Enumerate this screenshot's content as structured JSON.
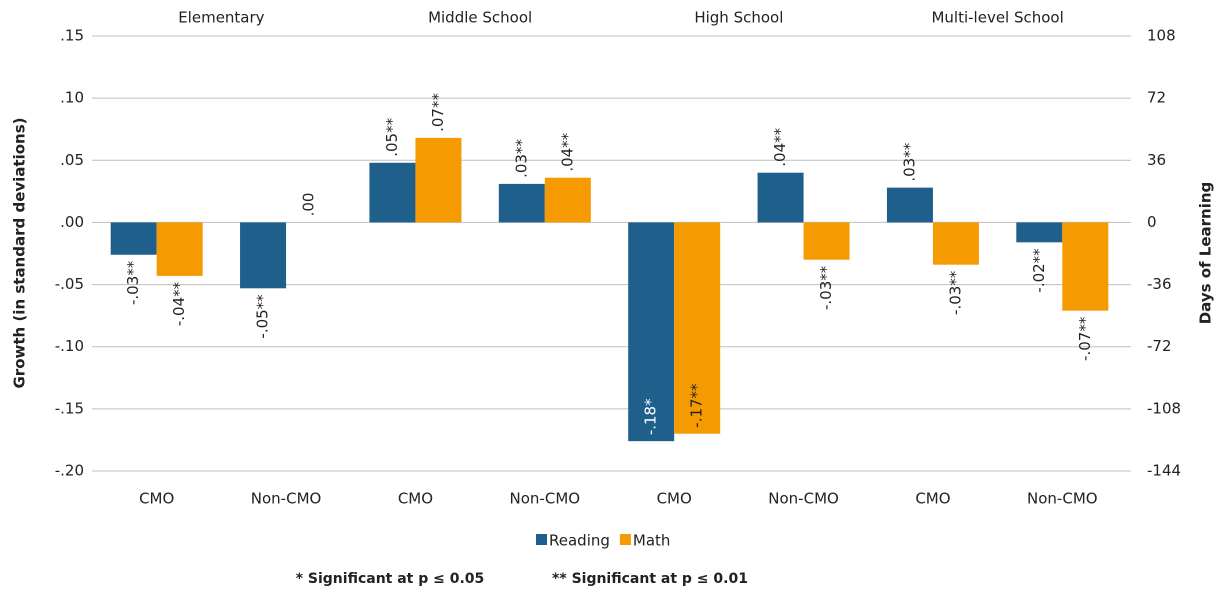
{
  "chart_data": {
    "type": "bar",
    "group_labels": [
      "Elementary",
      "Middle School",
      "High School",
      "Multi-level School"
    ],
    "categories": [
      "CMO",
      "Non-CMO",
      "CMO",
      "Non-CMO",
      "CMO",
      "Non-CMO",
      "CMO",
      "Non-CMO"
    ],
    "series": [
      {
        "name": "Reading",
        "color": "#1f5f8b",
        "values": [
          -0.026,
          -0.053,
          0.048,
          0.031,
          -0.176,
          0.04,
          0.028,
          -0.016
        ],
        "value_labels": [
          "-.03**",
          "-.05**",
          ".05**",
          ".03**",
          "-.18*",
          ".04**",
          ".03**",
          "-.02**"
        ]
      },
      {
        "name": "Math",
        "color": "#f59a00",
        "values": [
          -0.043,
          0,
          0.068,
          0.036,
          -0.17,
          -0.03,
          -0.034,
          -0.071
        ],
        "value_labels": [
          "-.04**",
          ".00",
          ".07**",
          ".04**",
          "-.17**",
          "-.03**",
          "-.03**",
          "-.07**"
        ]
      }
    ],
    "y_label": "Growth (in standard deviations)",
    "y2_label": "Days of Learning",
    "ylim": [
      -0.2,
      0.15
    ],
    "yticks": [
      {
        "value": 0.15,
        "label": ".15"
      },
      {
        "value": 0.1,
        "label": ".10"
      },
      {
        "value": 0.05,
        "label": ".05"
      },
      {
        "value": 0,
        "label": ".00"
      },
      {
        "value": -0.05,
        "label": "-.05"
      },
      {
        "value": -0.1,
        "label": "-.10"
      },
      {
        "value": -0.15,
        "label": "-.15"
      },
      {
        "value": -0.2,
        "label": "-.20"
      }
    ],
    "y2lim": [
      -144,
      108
    ],
    "y2ticks": [
      108,
      72,
      36,
      0,
      -36,
      -72,
      -108,
      -144
    ],
    "grid": true,
    "legend": "bottom",
    "notes": [
      "* Significant at p ≤ 0.05",
      "** Significant at p ≤ 0.01"
    ]
  }
}
